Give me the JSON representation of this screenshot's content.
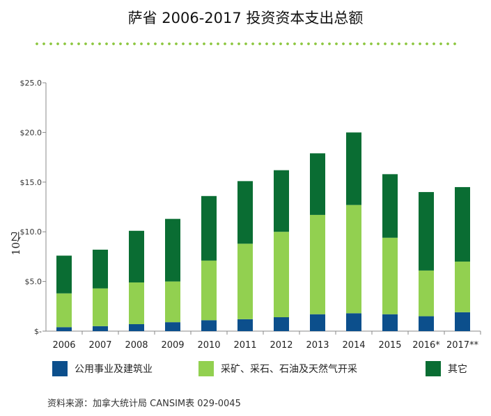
{
  "title": "萨省 2006-2017 投资资本支出总额",
  "source": "资料来源：加拿大统计局 CANSIM表  029-0045",
  "colors": {
    "utilities": "#0c4f8c",
    "mining": "#92d050",
    "other": "#0a6d33",
    "dots": "#8cc63f"
  },
  "legend": [
    {
      "label": "公用事业及建筑业",
      "color": "#0c4f8c"
    },
    {
      "label": "采矿、采石、石油及天然气开采",
      "color": "#92d050"
    },
    {
      "label": "其它",
      "color": "#0a6d33"
    }
  ],
  "chart_data": {
    "type": "bar",
    "stacked": true,
    "title": "萨省 2006-2017 投资资本支出总额",
    "ylabel": "10亿",
    "ylim": [
      0,
      25
    ],
    "yticks": [
      "$-",
      "$5.0",
      "$10.0",
      "$15.0",
      "$20.0",
      "$25.0"
    ],
    "ytick_values": [
      0,
      5,
      10,
      15,
      20,
      25
    ],
    "categories": [
      "2006",
      "2007",
      "2008",
      "2009",
      "2010",
      "2011",
      "2012",
      "2013",
      "2014",
      "2015",
      "2016*",
      "2017**"
    ],
    "series": [
      {
        "name": "公用事业及建筑业",
        "values": [
          0.4,
          0.5,
          0.7,
          0.9,
          1.1,
          1.2,
          1.4,
          1.7,
          1.8,
          1.7,
          1.5,
          1.9
        ]
      },
      {
        "name": "采矿、采石、石油及天然气开采",
        "values": [
          3.4,
          3.8,
          4.2,
          4.1,
          6.0,
          7.6,
          8.6,
          10.0,
          10.9,
          7.7,
          4.6,
          5.1
        ]
      },
      {
        "name": "其它",
        "values": [
          3.8,
          3.9,
          5.2,
          6.3,
          6.5,
          6.3,
          6.2,
          6.2,
          7.3,
          6.4,
          7.9,
          7.5
        ]
      }
    ],
    "grid": false,
    "legend_position": "bottom"
  }
}
